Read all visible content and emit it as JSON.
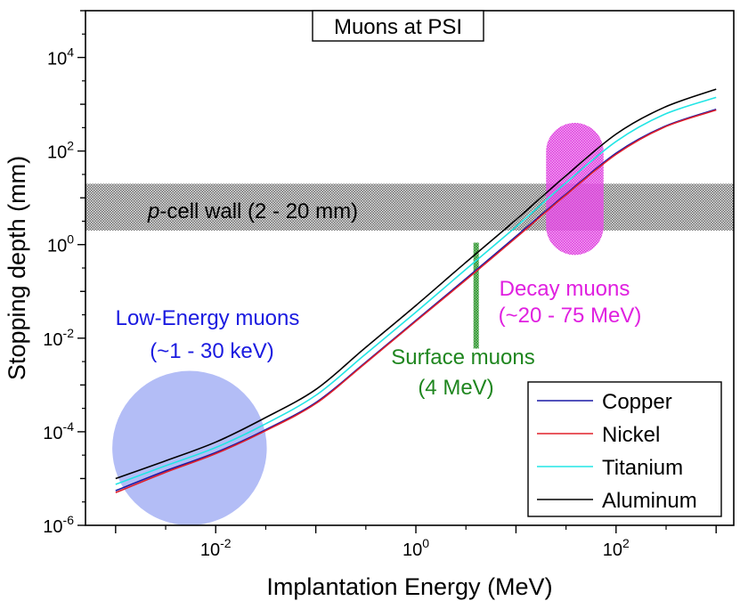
{
  "chart_data": {
    "type": "line",
    "title": "Muons at PSI",
    "xlabel": "Implantation Energy (MeV)",
    "ylabel": "Stopping depth (mm)",
    "xscale": "log",
    "yscale": "log",
    "xlim": [
      0.0005,
      1500
    ],
    "ylim": [
      1e-06,
      100000.0
    ],
    "x_ticks": [
      {
        "base": "10",
        "exp": "-2",
        "value": 0.01
      },
      {
        "base": "10",
        "exp": "0",
        "value": 1
      },
      {
        "base": "10",
        "exp": "2",
        "value": 100
      }
    ],
    "y_ticks": [
      {
        "base": "10",
        "exp": "-6",
        "value": 1e-06
      },
      {
        "base": "10",
        "exp": "-4",
        "value": 0.0001
      },
      {
        "base": "10",
        "exp": "-2",
        "value": 0.01
      },
      {
        "base": "10",
        "exp": "0",
        "value": 1
      },
      {
        "base": "10",
        "exp": "2",
        "value": 100
      },
      {
        "base": "10",
        "exp": "4",
        "value": 10000
      }
    ],
    "series": [
      {
        "name": "Copper",
        "color": "#1a1aa6",
        "x": [
          0.001,
          0.003,
          0.01,
          0.03,
          0.1,
          0.3,
          1,
          3,
          10,
          30,
          100,
          300,
          1000
        ],
        "y": [
          5.5e-06,
          1.4e-05,
          3.6e-05,
          0.000105,
          0.00042,
          0.0028,
          0.024,
          0.17,
          1.5,
          11,
          90,
          330,
          780
        ]
      },
      {
        "name": "Nickel",
        "color": "#e0202a",
        "x": [
          0.001,
          0.003,
          0.01,
          0.03,
          0.1,
          0.3,
          1,
          3,
          10,
          30,
          100,
          300,
          1000
        ],
        "y": [
          5e-06,
          1.3e-05,
          3.4e-05,
          0.0001,
          0.0004,
          0.0027,
          0.023,
          0.16,
          1.4,
          10.5,
          85,
          320,
          750
        ]
      },
      {
        "name": "Titanium",
        "color": "#22e5e5",
        "x": [
          0.001,
          0.003,
          0.01,
          0.03,
          0.1,
          0.3,
          1,
          3,
          10,
          30,
          100,
          300,
          1000
        ],
        "y": [
          7.5e-06,
          1.8e-05,
          4.6e-05,
          0.00014,
          0.0006,
          0.0042,
          0.036,
          0.27,
          2.4,
          19,
          160,
          600,
          1400
        ]
      },
      {
        "name": "Aluminum",
        "color": "#000000",
        "x": [
          0.001,
          0.003,
          0.01,
          0.03,
          0.1,
          0.3,
          1,
          3,
          10,
          30,
          100,
          300,
          1000
        ],
        "y": [
          1e-05,
          2.3e-05,
          6e-05,
          0.00019,
          0.0008,
          0.0058,
          0.05,
          0.38,
          3.4,
          27,
          230,
          850,
          2100
        ]
      }
    ],
    "regions": [
      {
        "name": "low-energy",
        "label1": "Low-Energy muons",
        "label2": "(~1 - 30 keV)",
        "color": "#b3bdf6",
        "xmin": 0.001,
        "xmax": 0.03,
        "ymin": 1e-06,
        "ymax": 0.002
      },
      {
        "name": "surface",
        "label1": "Surface muons",
        "label2": "(4 MeV)",
        "color": "#208a20",
        "x": 4,
        "ymin": 0.006,
        "ymax": 1.1
      },
      {
        "name": "decay",
        "label1": "Decay muons",
        "label2": "(~20 - 75 MeV)",
        "color": "#e040e0",
        "xmin": 20,
        "xmax": 75,
        "ymin": 0.6,
        "ymax": 400
      },
      {
        "name": "pcell-wall",
        "label_italic": "p",
        "label_rest": "-cell wall (2 - 20 mm)",
        "color": "#555555",
        "ymin": 2,
        "ymax": 20
      }
    ],
    "legend_position": "bottom-right"
  }
}
